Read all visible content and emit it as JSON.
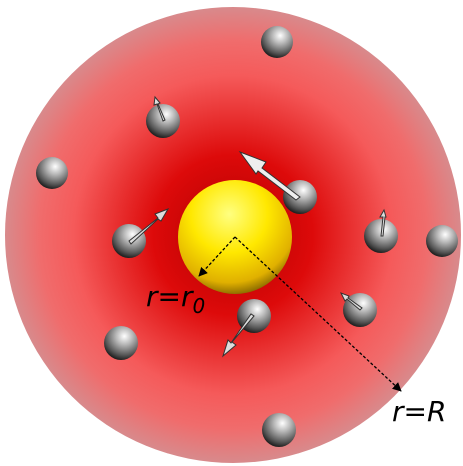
{
  "labels": {
    "inner_radius": {
      "text": "r=r",
      "subscript": "0"
    },
    "outer_radius": "r=R"
  }
}
